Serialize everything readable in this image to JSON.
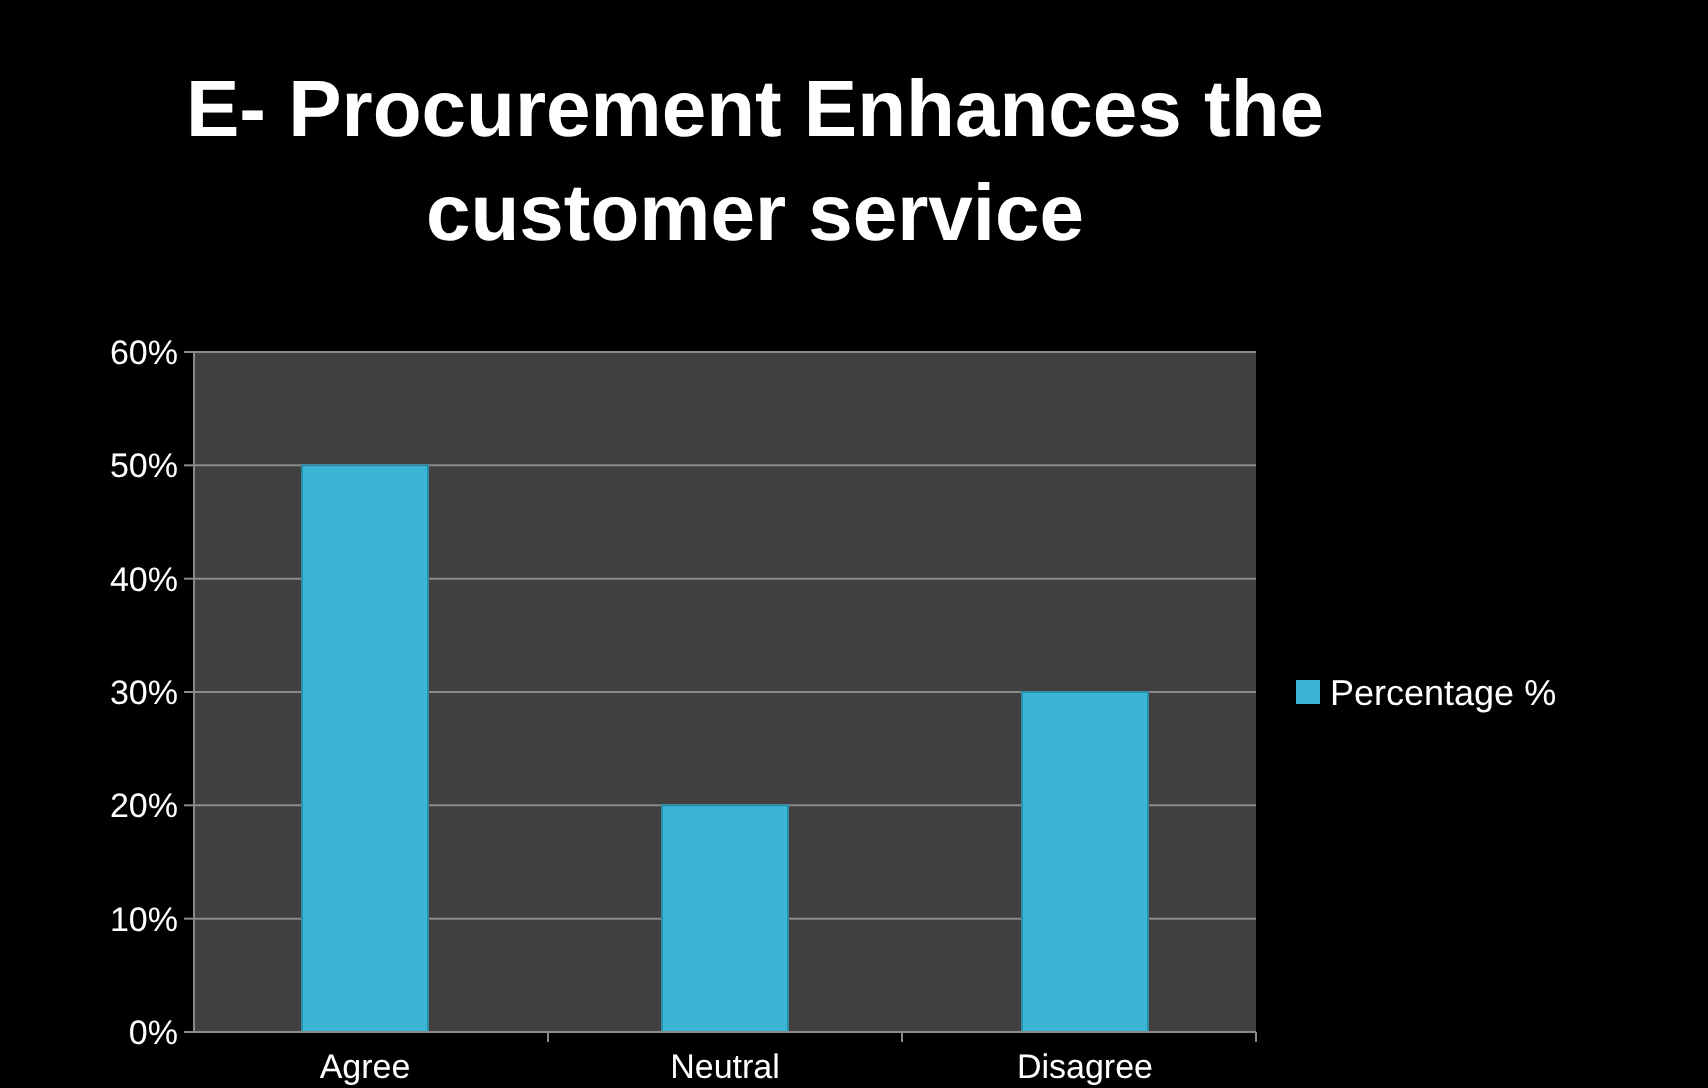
{
  "chart_data": {
    "type": "bar",
    "title": "E- Procurement Enhances the customer service",
    "categories": [
      "Agree",
      "Neutral",
      "Disagree"
    ],
    "series": [
      {
        "name": "Percentage %",
        "color": "#3bb5d6",
        "values": [
          50,
          20,
          30
        ]
      }
    ],
    "ylim": [
      0,
      60
    ],
    "yticks": [
      {
        "value": 0,
        "label": "0%"
      },
      {
        "value": 10,
        "label": "10%"
      },
      {
        "value": 20,
        "label": "20%"
      },
      {
        "value": 30,
        "label": "30%"
      },
      {
        "value": 40,
        "label": "40%"
      },
      {
        "value": 50,
        "label": "50%"
      },
      {
        "value": 60,
        "label": "60%"
      }
    ],
    "grid": "y",
    "legend": "right"
  }
}
